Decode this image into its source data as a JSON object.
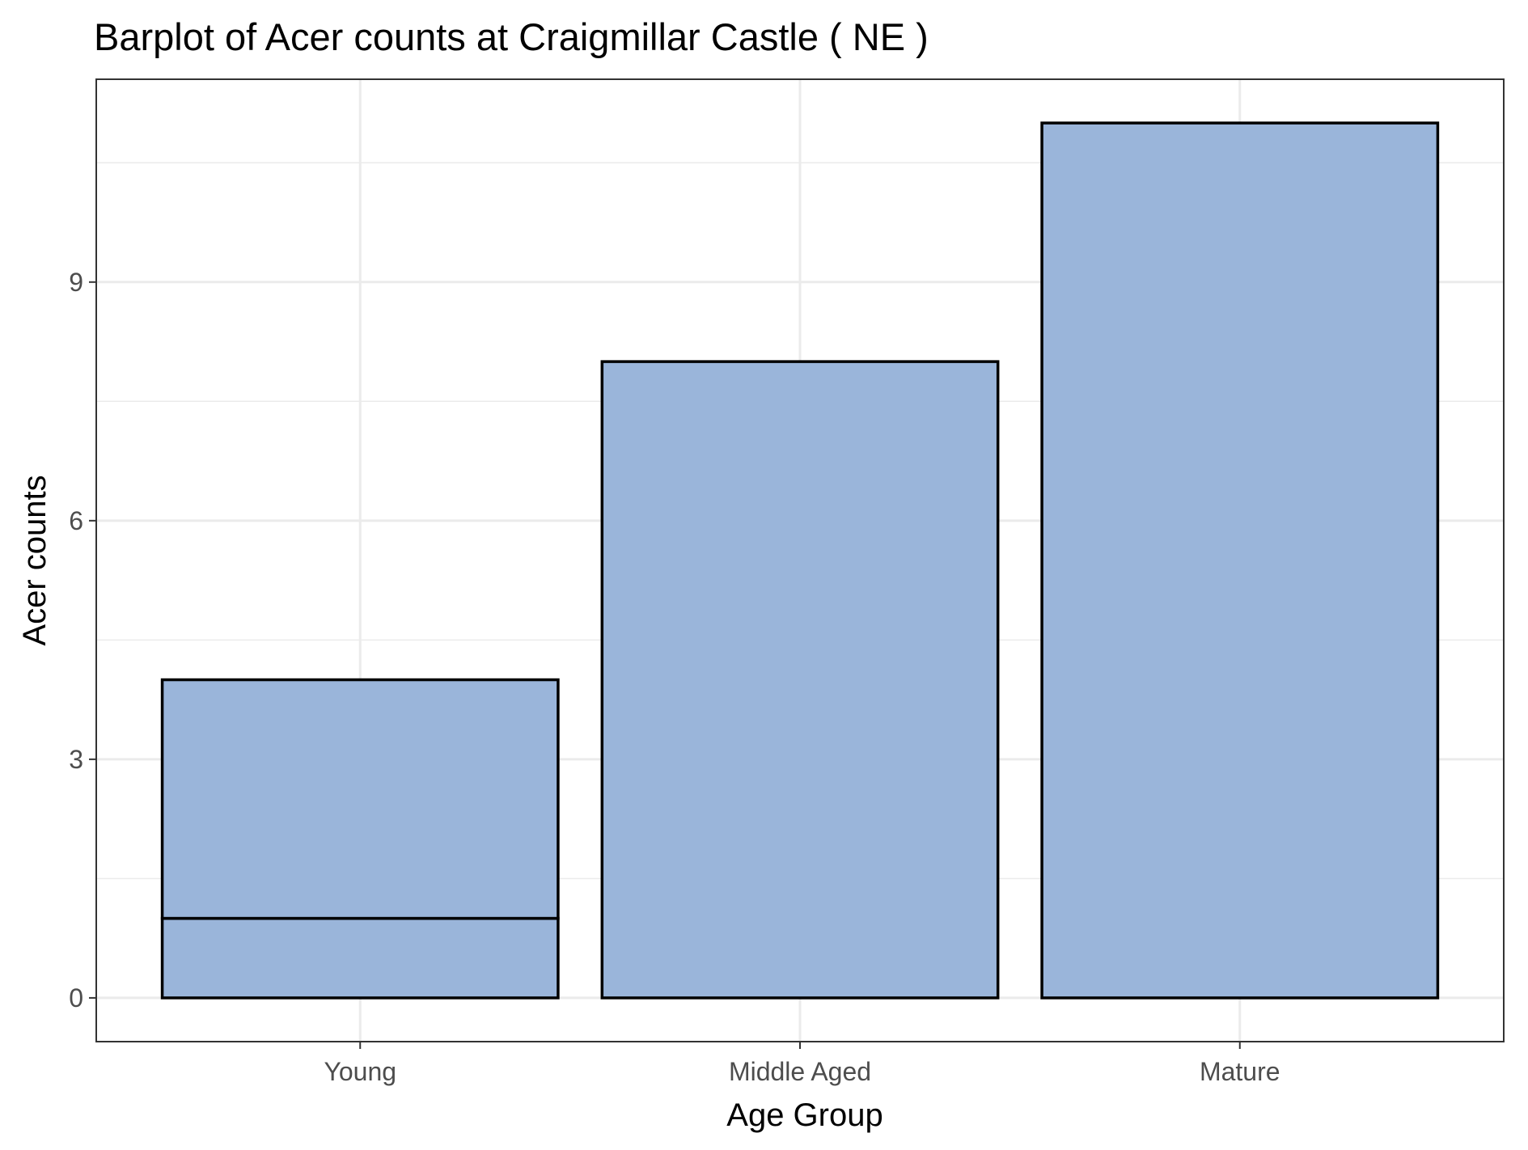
{
  "chart_data": {
    "type": "bar",
    "title": "Barplot of Acer counts at Craigmillar Castle ( NE )",
    "xlabel": "Age Group",
    "ylabel": "Acer counts",
    "categories": [
      "Young",
      "Middle Aged",
      "Mature"
    ],
    "stacks": [
      [
        1,
        3
      ],
      [
        8
      ],
      [
        11
      ]
    ],
    "values": [
      4,
      8,
      11
    ],
    "ylim": [
      -0.55,
      11.55
    ],
    "yticks": [
      0,
      3,
      6,
      9
    ],
    "ytick_labels": [
      "0",
      "3",
      "6",
      "9"
    ],
    "y_minor_gridlines": [
      1.5,
      4.5,
      7.5,
      10.5
    ],
    "grid": true,
    "legend": "none",
    "colors": {
      "bar_fill": "#9ab5da",
      "bar_stroke": "#000000",
      "grid": "#ebebeb",
      "panel_border": "#333333",
      "axis_text": "#4d4d4d",
      "title_text": "#000000"
    }
  }
}
